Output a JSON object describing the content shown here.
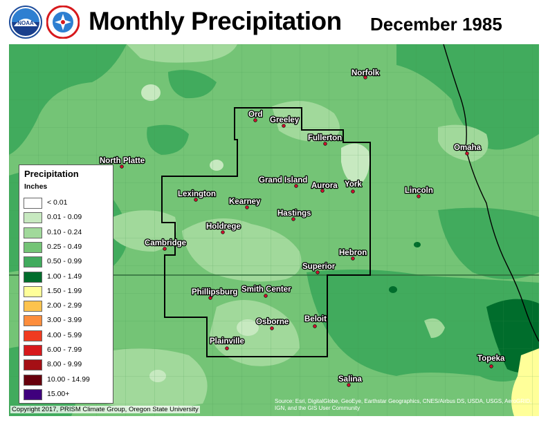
{
  "header": {
    "title": "Monthly Precipitation",
    "subtitle": "December 1985"
  },
  "logos": [
    {
      "name": "noaa-logo",
      "text": "NOAA"
    },
    {
      "name": "nws-logo",
      "text": "NATIONAL WEATHER SERVICE"
    }
  ],
  "legend": {
    "title": "Precipitation",
    "units": "Inches",
    "items": [
      {
        "label": "< 0.01",
        "color": "#ffffff"
      },
      {
        "label": "0.01 - 0.09",
        "color": "#c7e9c0"
      },
      {
        "label": "0.10 - 0.24",
        "color": "#a1d99b"
      },
      {
        "label": "0.25 - 0.49",
        "color": "#74c476"
      },
      {
        "label": "0.50 - 0.99",
        "color": "#41ab5d"
      },
      {
        "label": "1.00 - 1.49",
        "color": "#006d2c"
      },
      {
        "label": "1.50 - 1.99",
        "color": "#ffff99"
      },
      {
        "label": "2.00 - 2.99",
        "color": "#fdc34d"
      },
      {
        "label": "3.00 - 3.99",
        "color": "#fd8d3c"
      },
      {
        "label": "4.00 - 5.99",
        "color": "#f03b20"
      },
      {
        "label": "6.00 - 7.99",
        "color": "#d7191c"
      },
      {
        "label": "8.00 - 9.99",
        "color": "#a50f15"
      },
      {
        "label": "10.00 - 14.99",
        "color": "#67000d"
      },
      {
        "label": "15.00+",
        "color": "#3f007d"
      }
    ]
  },
  "cities": [
    {
      "name": "Norfolk"
    },
    {
      "name": "Ord"
    },
    {
      "name": "Greeley"
    },
    {
      "name": "Fullerton"
    },
    {
      "name": "Omaha"
    },
    {
      "name": "North Platte"
    },
    {
      "name": "Grand Island"
    },
    {
      "name": "Aurora"
    },
    {
      "name": "York"
    },
    {
      "name": "Lincoln"
    },
    {
      "name": "Lexington"
    },
    {
      "name": "Kearney"
    },
    {
      "name": "Hastings"
    },
    {
      "name": "Holdrege"
    },
    {
      "name": "Cambridge"
    },
    {
      "name": "Hebron"
    },
    {
      "name": "Superior"
    },
    {
      "name": "Phillipsburg"
    },
    {
      "name": "Smith Center"
    },
    {
      "name": "Osborne"
    },
    {
      "name": "Beloit"
    },
    {
      "name": "Plainville"
    },
    {
      "name": "Topeka"
    },
    {
      "name": "Salina"
    }
  ],
  "footer": {
    "copyright": "Copyright 2017, PRISM Climate Group, Oregon State University",
    "source": "Source: Esri, DigitalGlobe, GeoEye, Earthstar Geographics, CNES/Airbus DS, USDA, USGS, AeroGRID, IGN, and the GIS User Community"
  }
}
